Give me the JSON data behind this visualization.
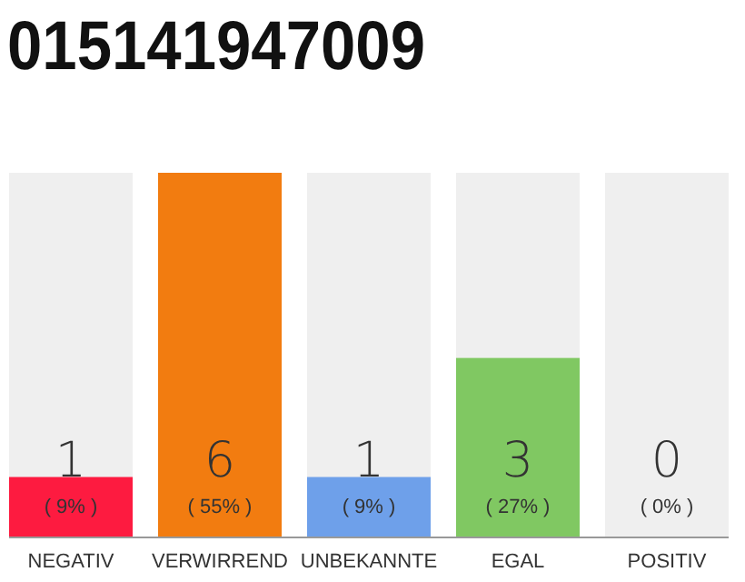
{
  "chart_data": {
    "type": "bar",
    "title": "015141947009",
    "categories": [
      "NEGATIV",
      "VERWIRREND",
      "UNBEKANNTE",
      "EGAL",
      "POSITIV"
    ],
    "values": [
      9,
      55,
      9,
      27,
      0
    ],
    "colors": [
      "#fd1b40",
      "#f27c10",
      "#6ea0ea",
      "#80c862",
      "#cccccc"
    ],
    "grid": "x",
    "value_labels": [
      "1\n( 9% )",
      "6\n( 55% )",
      "1\n( 9% )",
      "3\n( 27% )",
      "0\n( 0% )"
    ]
  }
}
